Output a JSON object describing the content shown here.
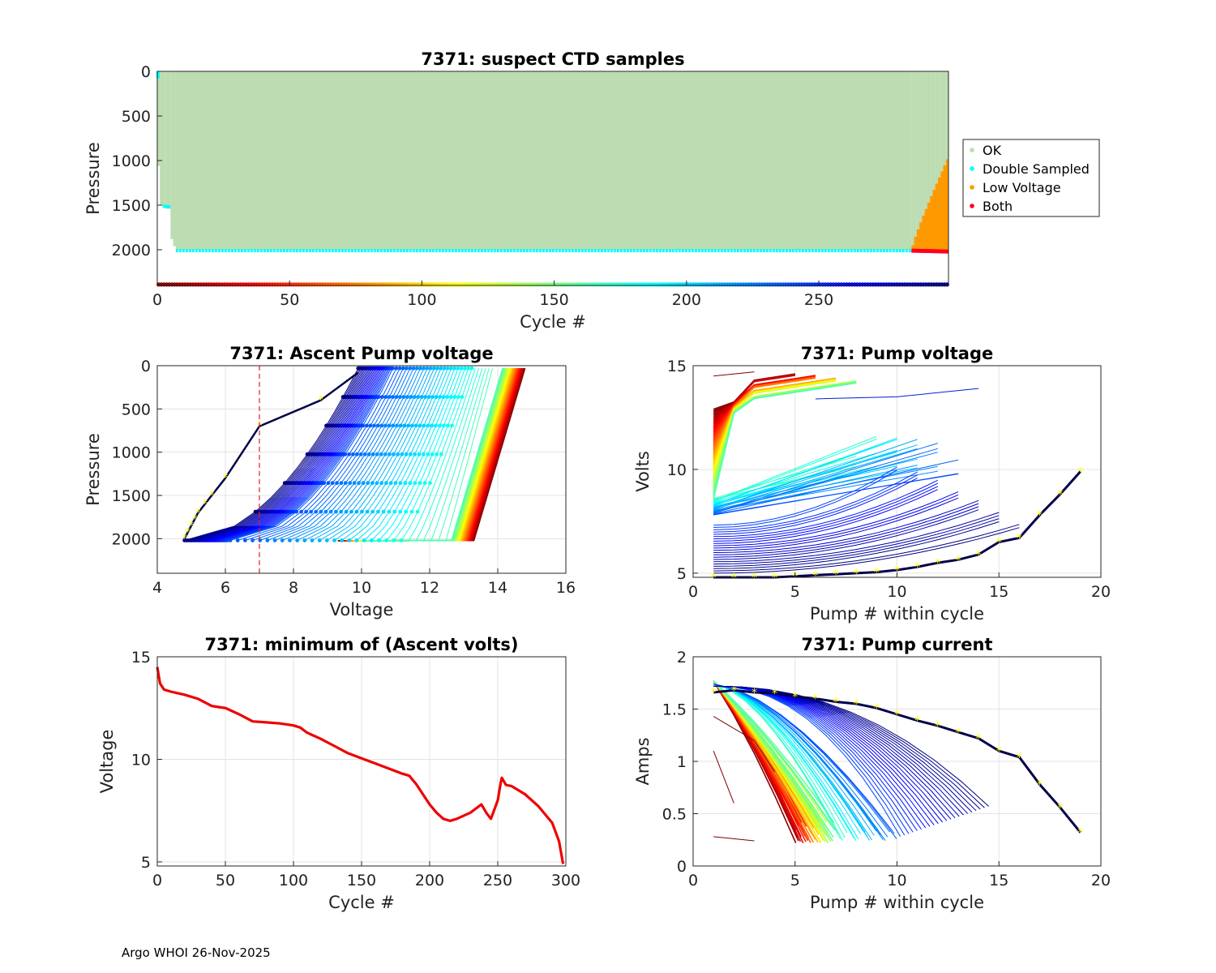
{
  "footer": "Argo WHOI 26-Nov-2025",
  "colors": {
    "ok": "#bcdcb1",
    "double": "#00ffff",
    "low": "#ff9900",
    "both": "#ff0022",
    "limit": "#e0202a",
    "marker": "#ffff00",
    "minvolt": "#ee0000"
  },
  "chart_data": [
    {
      "id": "ctd",
      "type": "area",
      "title": "7371: suspect CTD samples",
      "xlabel": "Cycle #",
      "ylabel": "Pressure",
      "xlim": [
        0,
        299
      ],
      "ylim": [
        2400,
        0
      ],
      "xticks": [
        0,
        50,
        100,
        150,
        200,
        250
      ],
      "yticks": [
        0,
        500,
        1000,
        1500,
        2000
      ],
      "legend": [
        "OK",
        "Double Sampled",
        "Low Voltage",
        "Both"
      ],
      "legend_position": "outside-right",
      "ok_pressure_range": [
        0,
        2000
      ],
      "double_sampled_pressure": 2010,
      "low_voltage_cycles": [
        285,
        299
      ],
      "low_voltage_top_pressure": [
        1950,
        920
      ],
      "cycle_color_bar_pressure": 2390
    },
    {
      "id": "ascent",
      "type": "line",
      "title": "7371: Ascent Pump voltage",
      "xlabel": "Voltage",
      "ylabel": "Pressure",
      "xlim": [
        4,
        16
      ],
      "ylim": [
        2400,
        0
      ],
      "xticks": [
        4,
        6,
        8,
        10,
        12,
        14,
        16
      ],
      "yticks": [
        0,
        500,
        1000,
        1500,
        2000
      ],
      "voltage_limit": 7,
      "series_note": "one profile per cycle, colored by cycle (red early, blue/black late)",
      "last_cycle_profile": [
        [
          4.8,
          2000
        ],
        [
          5.2,
          1700
        ],
        [
          6.0,
          1300
        ],
        [
          7.0,
          700
        ],
        [
          8.8,
          400
        ],
        [
          9.9,
          80
        ]
      ]
    },
    {
      "id": "pumpvolt",
      "type": "line",
      "title": "7371: Pump voltage",
      "xlabel": "Pump # within cycle",
      "ylabel": "Volts",
      "xlim": [
        0,
        20
      ],
      "ylim": [
        4.8,
        15
      ],
      "xticks": [
        0,
        5,
        10,
        15,
        20
      ],
      "yticks": [
        5,
        10,
        15
      ],
      "last_cycle": {
        "x": [
          1,
          2,
          3,
          4,
          5,
          6,
          7,
          8,
          9,
          10,
          11,
          12,
          13,
          14,
          15,
          16,
          17,
          18,
          19
        ],
        "y": [
          4.8,
          4.8,
          4.8,
          4.8,
          4.85,
          4.9,
          4.95,
          5.0,
          5.05,
          5.15,
          5.3,
          5.5,
          5.65,
          5.9,
          6.5,
          6.7,
          7.8,
          8.8,
          9.9
        ]
      }
    },
    {
      "id": "minvolt",
      "type": "line",
      "title": "7371: minimum of (Ascent volts)",
      "xlabel": "Cycle #",
      "ylabel": "Voltage",
      "xlim": [
        0,
        300
      ],
      "ylim": [
        4.8,
        15
      ],
      "xticks": [
        0,
        50,
        100,
        150,
        200,
        250,
        300
      ],
      "yticks": [
        5,
        10,
        15
      ],
      "x": [
        0,
        2,
        5,
        10,
        20,
        30,
        40,
        45,
        50,
        55,
        60,
        70,
        80,
        90,
        100,
        105,
        110,
        120,
        130,
        140,
        150,
        160,
        170,
        180,
        185,
        190,
        200,
        205,
        210,
        215,
        220,
        230,
        238,
        242,
        245,
        250,
        252,
        253,
        256,
        260,
        270,
        280,
        290,
        295,
        298
      ],
      "y": [
        14.5,
        13.7,
        13.4,
        13.3,
        13.15,
        12.95,
        12.6,
        12.55,
        12.5,
        12.35,
        12.2,
        11.85,
        11.8,
        11.75,
        11.65,
        11.55,
        11.3,
        11.0,
        10.65,
        10.3,
        10.05,
        9.8,
        9.55,
        9.3,
        9.2,
        8.8,
        7.8,
        7.4,
        7.1,
        7.0,
        7.1,
        7.4,
        7.8,
        7.35,
        7.1,
        8.0,
        8.8,
        9.1,
        8.75,
        8.7,
        8.3,
        7.7,
        6.9,
        6.0,
        4.9
      ]
    },
    {
      "id": "pumpcurr",
      "type": "line",
      "title": "7371: Pump current",
      "xlabel": "Pump # within cycle",
      "ylabel": "Amps",
      "xlim": [
        0,
        20
      ],
      "ylim": [
        0,
        2
      ],
      "xticks": [
        0,
        5,
        10,
        15,
        20
      ],
      "yticks": [
        0,
        0.5,
        1,
        1.5,
        2
      ],
      "last_cycle": {
        "x": [
          1,
          2,
          3,
          4,
          5,
          6,
          7,
          8,
          9,
          10,
          11,
          12,
          13,
          14,
          15,
          16,
          17,
          18,
          19
        ],
        "y": [
          1.66,
          1.68,
          1.66,
          1.65,
          1.62,
          1.6,
          1.57,
          1.55,
          1.51,
          1.45,
          1.39,
          1.34,
          1.28,
          1.22,
          1.1,
          1.04,
          0.78,
          0.56,
          0.32
        ]
      }
    }
  ]
}
